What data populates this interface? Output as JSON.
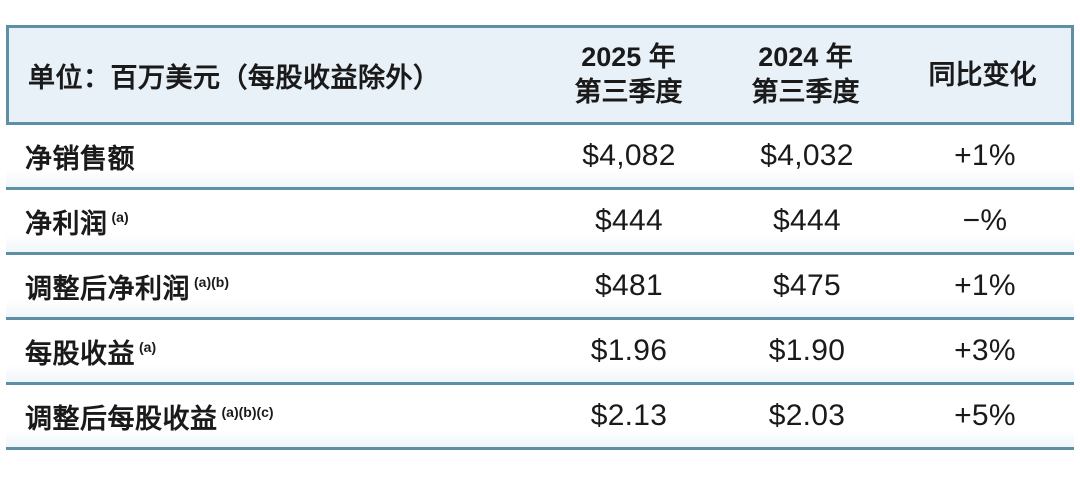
{
  "chart_data": {
    "type": "table",
    "title": "单位：百万美元（每股收益除外）",
    "columns": [
      "",
      "2025 年 第三季度",
      "2024 年 第三季度",
      "同比变化"
    ],
    "rows": [
      [
        "净销售额",
        "$4,082",
        "$4,032",
        "+1%"
      ],
      [
        "净利润 (a)",
        "$444",
        "$444",
        "−%"
      ],
      [
        "调整后净利润 (a)(b)",
        "$481",
        "$475",
        "+1%"
      ],
      [
        "每股收益 (a)",
        "$1.96",
        "$1.90",
        "+3%"
      ],
      [
        "调整后每股收益 (a)(b)(c)",
        "$2.13",
        "$2.03",
        "+5%"
      ]
    ],
    "layout_hints": {
      "header_background": "#e9f1f8",
      "rule_color": "#5d8fa6",
      "text_color": "#1a1a1a",
      "grid": "horizontal-rules-only"
    }
  },
  "table": {
    "unit_label": "单位：百万美元（每股收益除外）",
    "columns": [
      {
        "line1": "2025 年",
        "line2": "第三季度"
      },
      {
        "line1": "2024 年",
        "line2": "第三季度"
      },
      {
        "label": "同比变化"
      }
    ],
    "rows": [
      {
        "label": "净销售额",
        "sup": "",
        "q3_2025": "$4,082",
        "q3_2024": "$4,032",
        "yoy": "+1%"
      },
      {
        "label": "净利润",
        "sup": "(a)",
        "q3_2025": "$444",
        "q3_2024": "$444",
        "yoy": "−%"
      },
      {
        "label": "调整后净利润",
        "sup": "(a)(b)",
        "q3_2025": "$481",
        "q3_2024": "$475",
        "yoy": "+1%"
      },
      {
        "label": "每股收益",
        "sup": "(a)",
        "q3_2025": "$1.96",
        "q3_2024": "$1.90",
        "yoy": "+3%"
      },
      {
        "label": "调整后每股收益",
        "sup": "(a)(b)(c)",
        "q3_2025": "$2.13",
        "q3_2024": "$2.03",
        "yoy": "+5%"
      }
    ],
    "colors": {
      "rule": "#5d8fa6",
      "header_bg": "#e9f1f8",
      "text": "#1a1a1a"
    }
  }
}
